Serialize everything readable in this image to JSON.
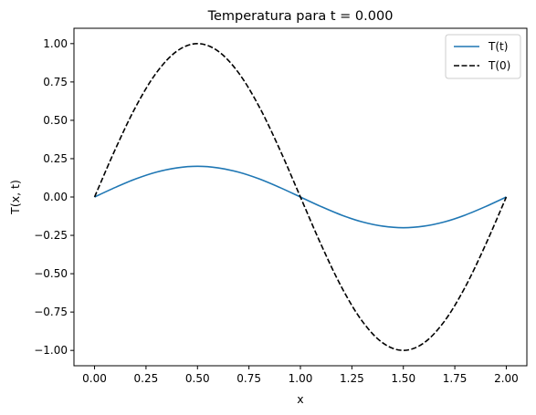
{
  "chart_data": {
    "type": "line",
    "title": "Temperatura para t = 0.000",
    "xlabel": "x",
    "ylabel": "T(x, t)",
    "xlim": [
      -0.1,
      2.1
    ],
    "ylim": [
      -1.1,
      1.1
    ],
    "grid": false,
    "legend_position": "top-right",
    "xticks": [
      "0.00",
      "0.25",
      "0.50",
      "0.75",
      "1.00",
      "1.25",
      "1.50",
      "1.75",
      "2.00"
    ],
    "yticks": [
      "-1.00",
      "-0.75",
      "-0.50",
      "-0.25",
      "0.00",
      "0.25",
      "0.50",
      "0.75",
      "1.00"
    ],
    "series": [
      {
        "name": "T(t)",
        "color": "#1f77b4",
        "dash": "solid",
        "x": [
          0,
          0.1,
          0.2,
          0.3,
          0.4,
          0.5,
          0.6,
          0.7,
          0.8,
          0.9,
          1.0,
          1.1,
          1.2,
          1.3,
          1.4,
          1.5,
          1.6,
          1.7,
          1.8,
          1.9,
          2.0
        ],
        "y": [
          0,
          0.062,
          0.118,
          0.162,
          0.19,
          0.2,
          0.19,
          0.162,
          0.118,
          0.062,
          0,
          -0.062,
          -0.118,
          -0.162,
          -0.19,
          -0.2,
          -0.19,
          -0.162,
          -0.118,
          -0.062,
          0
        ]
      },
      {
        "name": "T(0)",
        "color": "#000000",
        "dash": "dashed",
        "x": [
          0,
          0.1,
          0.2,
          0.3,
          0.4,
          0.5,
          0.6,
          0.7,
          0.8,
          0.9,
          1.0,
          1.1,
          1.2,
          1.3,
          1.4,
          1.5,
          1.6,
          1.7,
          1.8,
          1.9,
          2.0
        ],
        "y": [
          0,
          0.309,
          0.588,
          0.809,
          0.951,
          1.0,
          0.951,
          0.809,
          0.588,
          0.309,
          0,
          -0.309,
          -0.588,
          -0.809,
          -0.951,
          -1.0,
          -0.951,
          -0.809,
          -0.588,
          -0.309,
          0
        ]
      }
    ]
  }
}
